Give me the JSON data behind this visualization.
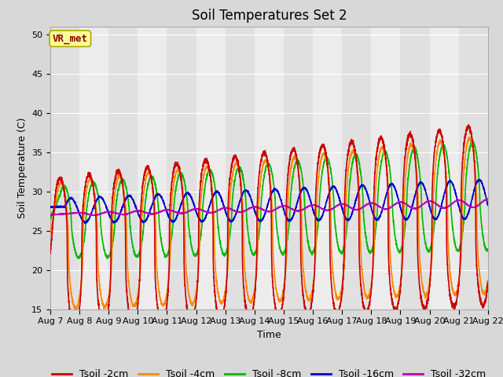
{
  "title": "Soil Temperatures Set 2",
  "xlabel": "Time",
  "ylabel": "Soil Temperature (C)",
  "ylim": [
    15,
    51
  ],
  "yticks": [
    15,
    20,
    25,
    30,
    35,
    40,
    45,
    50
  ],
  "n_days": 15,
  "x_tick_labels": [
    "Aug 7",
    "Aug 8",
    "Aug 9",
    "Aug 10",
    "Aug 11",
    "Aug 12",
    "Aug 13",
    "Aug 14",
    "Aug 15",
    "Aug 16",
    "Aug 17",
    "Aug 18",
    "Aug 19",
    "Aug 20",
    "Aug 21",
    "Aug 22"
  ],
  "series_colors": [
    "#cc0000",
    "#ff8800",
    "#00bb00",
    "#0000cc",
    "#bb00bb"
  ],
  "series_labels": [
    "Tsoil -2cm",
    "Tsoil -4cm",
    "Tsoil -8cm",
    "Tsoil -16cm",
    "Tsoil -32cm"
  ],
  "fig_bg_color": "#d8d8d8",
  "plot_bg_color": "#e0e0e0",
  "alt_band_color": "#cccccc",
  "vr_met_box_color": "#ffff99",
  "vr_met_text_color": "#880000",
  "vr_met_border_color": "#aaaa00",
  "title_fontsize": 12,
  "axis_label_fontsize": 9,
  "tick_fontsize": 8,
  "legend_fontsize": 9,
  "line_width": 1.2
}
